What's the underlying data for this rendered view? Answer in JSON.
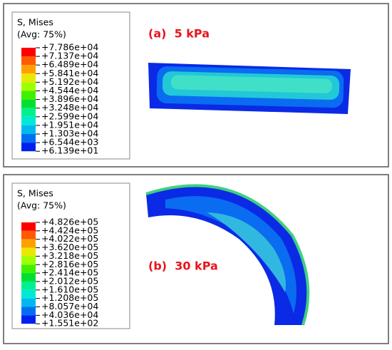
{
  "panels": [
    {
      "legend": {
        "title": "S, Mises",
        "subtitle": "(Avg: 75%)",
        "labels": [
          "+7.786e+04",
          "+7.137e+04",
          "+6.489e+04",
          "+5.841e+04",
          "+5.192e+04",
          "+4.544e+04",
          "+3.896e+04",
          "+3.248e+04",
          "+2.599e+04",
          "+1.951e+04",
          "+1.303e+04",
          "+6.544e+03",
          "+6.139e+01"
        ]
      },
      "caption": "(a)  5 kPa"
    },
    {
      "legend": {
        "title": "S, Mises",
        "subtitle": "(Avg: 75%)",
        "labels": [
          "+4.826e+05",
          "+4.424e+05",
          "+4.022e+05",
          "+3.620e+05",
          "+3.218e+05",
          "+2.816e+05",
          "+2.414e+05",
          "+2.012e+05",
          "+1.610e+05",
          "+1.208e+05",
          "+8.057e+04",
          "+4.036e+04",
          "+1.551e+02"
        ]
      },
      "caption": "(b)  30 kPa"
    }
  ]
}
